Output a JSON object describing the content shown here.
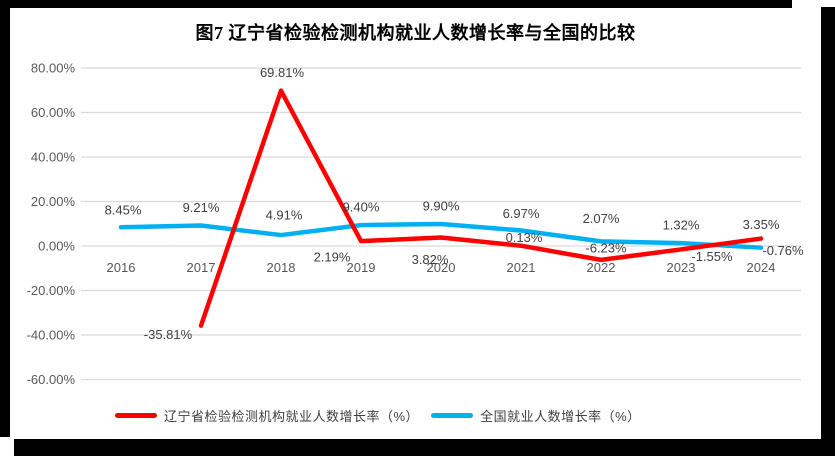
{
  "title": "图7 辽宁省检验检测机构就业人数增长率与全国的比较",
  "chart_data": {
    "type": "line",
    "categories": [
      "2016",
      "2017",
      "2018",
      "2019",
      "2020",
      "2021",
      "2022",
      "2023",
      "2024"
    ],
    "series": [
      {
        "name": "辽宁省检验检测机构就业人数增长率（%）",
        "color": "#FF0000",
        "values": [
          null,
          -35.81,
          69.81,
          2.19,
          3.82,
          0.13,
          -6.23,
          -1.55,
          3.35
        ],
        "labels": [
          null,
          "-35.81%",
          "69.81%",
          "2.19%",
          "3.82%",
          "0.13%",
          "-6.23%",
          "-1.55%",
          "3.35%"
        ],
        "label_offsets": [
          null,
          [
            -33,
            9
          ],
          [
            1,
            -18
          ],
          [
            -29,
            16
          ],
          [
            -11,
            22
          ],
          [
            3,
            -8
          ],
          [
            5,
            -12
          ],
          [
            31,
            7
          ],
          [
            0,
            -14
          ]
        ]
      },
      {
        "name": "全国就业人数增长率（%）",
        "color": "#00B0F0",
        "values": [
          8.45,
          9.21,
          4.91,
          9.4,
          9.9,
          6.97,
          2.07,
          1.32,
          -0.76
        ],
        "labels": [
          "8.45%",
          "9.21%",
          "4.91%",
          "9.40%",
          "9.90%",
          "6.97%",
          "2.07%",
          "1.32%",
          "-0.76%"
        ],
        "label_offsets": [
          [
            2,
            -17
          ],
          [
            0,
            -18
          ],
          [
            3,
            -20
          ],
          [
            0,
            -18
          ],
          [
            0,
            -18
          ],
          [
            0,
            -17
          ],
          [
            0,
            -23
          ],
          [
            0,
            -18
          ],
          [
            22,
            3
          ]
        ]
      }
    ],
    "y_ticks": [
      "80.00%",
      "60.00%",
      "40.00%",
      "20.00%",
      "0.00%",
      "-20.00%",
      "-40.00%",
      "-60.00%"
    ],
    "ylim": [
      -60,
      80
    ],
    "grid": true,
    "legend_position": "bottom",
    "colors": {
      "gridline": "#D9D9D9",
      "axis_text": "#595959",
      "data_label": "#404040"
    }
  },
  "legend": {
    "items": [
      {
        "label": "辽宁省检验检测机构就业人数增长率（%）",
        "color": "#FF0000"
      },
      {
        "label": "全国就业人数增长率（%）",
        "color": "#00B0F0"
      }
    ]
  }
}
